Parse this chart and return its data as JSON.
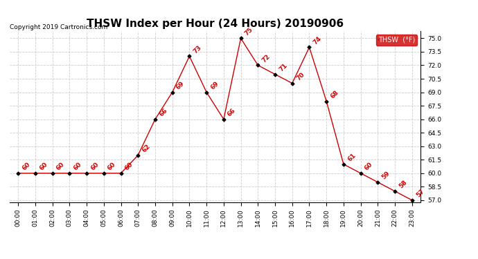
{
  "title": "THSW Index per Hour (24 Hours) 20190906",
  "copyright": "Copyright 2019 Cartronics.com",
  "ylabel": "THSW  (°F)",
  "hours": [
    0,
    1,
    2,
    3,
    4,
    5,
    6,
    7,
    8,
    9,
    10,
    11,
    12,
    13,
    14,
    15,
    16,
    17,
    18,
    19,
    20,
    21,
    22,
    23
  ],
  "values": [
    60,
    60,
    60,
    60,
    60,
    60,
    60,
    62,
    66,
    69,
    73,
    69,
    66,
    75,
    72,
    71,
    70,
    74,
    68,
    61,
    60,
    59,
    58,
    57
  ],
  "ylim_min": 56.8,
  "ylim_max": 75.8,
  "yticks": [
    57.0,
    58.5,
    60.0,
    61.5,
    63.0,
    64.5,
    66.0,
    67.5,
    69.0,
    70.5,
    72.0,
    73.5,
    75.0
  ],
  "line_color": "#cc0000",
  "marker_color": "#000000",
  "bg_color": "#ffffff",
  "grid_color": "#cccccc",
  "legend_bg": "#cc0000",
  "legend_text_color": "#ffffff",
  "copyright_color": "#000000",
  "label_color": "#cc0000",
  "title_fontsize": 11,
  "label_fontsize": 6.5,
  "tick_fontsize": 6.5,
  "copyright_fontsize": 6.5
}
